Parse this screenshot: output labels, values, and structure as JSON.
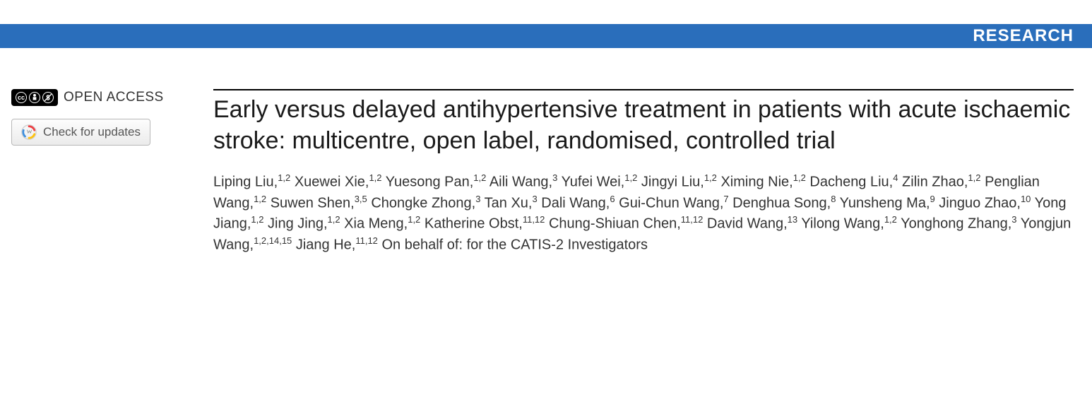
{
  "header": {
    "label": "RESEARCH",
    "background_color": "#2a6ebb",
    "text_color": "#ffffff"
  },
  "sidebar": {
    "open_access_text": "OPEN ACCESS",
    "cc_symbols": [
      "cc",
      "⊕",
      "⊘"
    ],
    "check_updates_label": "Check for updates"
  },
  "article": {
    "title": "Early versus delayed antihypertensive treatment in patients with acute ischaemic stroke: multicentre, open label, randomised, controlled trial",
    "title_fontsize": 34,
    "title_color": "#1a1a1a",
    "authors": [
      {
        "name": "Liping Liu",
        "affil": "1,2"
      },
      {
        "name": "Xuewei Xie",
        "affil": "1,2"
      },
      {
        "name": "Yuesong Pan",
        "affil": "1,2"
      },
      {
        "name": "Aili Wang",
        "affil": "3"
      },
      {
        "name": "Yufei Wei",
        "affil": "1,2"
      },
      {
        "name": "Jingyi Liu",
        "affil": "1,2"
      },
      {
        "name": "Ximing Nie",
        "affil": "1,2"
      },
      {
        "name": "Dacheng Liu",
        "affil": "4"
      },
      {
        "name": "Zilin Zhao",
        "affil": "1,2"
      },
      {
        "name": "Penglian Wang",
        "affil": "1,2"
      },
      {
        "name": "Suwen Shen",
        "affil": "3,5"
      },
      {
        "name": "Chongke Zhong",
        "affil": "3"
      },
      {
        "name": "Tan Xu",
        "affil": "3"
      },
      {
        "name": "Dali Wang",
        "affil": "6"
      },
      {
        "name": "Gui-Chun Wang",
        "affil": "7"
      },
      {
        "name": "Denghua Song",
        "affil": "8"
      },
      {
        "name": "Yunsheng Ma",
        "affil": "9"
      },
      {
        "name": "Jinguo Zhao",
        "affil": "10"
      },
      {
        "name": "Yong Jiang",
        "affil": "1,2"
      },
      {
        "name": "Jing Jing",
        "affil": "1,2"
      },
      {
        "name": "Xia Meng",
        "affil": "1,2"
      },
      {
        "name": "Katherine Obst",
        "affil": "11,12"
      },
      {
        "name": "Chung-Shiuan Chen",
        "affil": "11,12"
      },
      {
        "name": "David Wang",
        "affil": "13"
      },
      {
        "name": "Yilong Wang",
        "affil": "1,2"
      },
      {
        "name": "Yonghong Zhang",
        "affil": "3"
      },
      {
        "name": "Yongjun Wang",
        "affil": "1,2,14,15"
      },
      {
        "name": "Jiang He",
        "affil": "11,12"
      }
    ],
    "authors_suffix": "On behalf of: for the CATIS-2 Investigators",
    "authors_fontsize": 20,
    "authors_color": "#333333"
  },
  "colors": {
    "header_bg": "#2a6ebb",
    "white": "#ffffff",
    "black": "#000000",
    "text": "#1a1a1a",
    "button_border": "#b8b8b8"
  }
}
